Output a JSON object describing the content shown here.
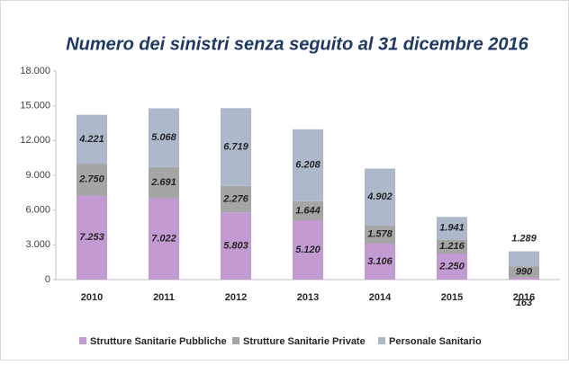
{
  "chart_data": {
    "type": "stacked_bar",
    "title": "Numero dei sinistri senza seguito al 31 dicembre 2016",
    "categories": [
      "2010",
      "2011",
      "2012",
      "2013",
      "2014",
      "2015",
      "2016"
    ],
    "series": [
      {
        "name": "Strutture Sanitarie Pubbliche",
        "color": "#c39bd3",
        "values": [
          7253,
          7022,
          5803,
          5120,
          3106,
          2250,
          163
        ],
        "value_labels": [
          "7.253",
          "7.022",
          "5.803",
          "5.120",
          "3.106",
          "2.250",
          "163"
        ]
      },
      {
        "name": "Strutture Sanitarie Private",
        "color": "#a5a5a5",
        "values": [
          2750,
          2691,
          2276,
          1644,
          1578,
          1216,
          990
        ],
        "value_labels": [
          "2.750",
          "2.691",
          "2.276",
          "1.644",
          "1.578",
          "1.216",
          "990"
        ]
      },
      {
        "name": "Personale Sanitario",
        "color": "#adb9ca",
        "values": [
          4221,
          5068,
          6719,
          6208,
          4902,
          1941,
          1289
        ],
        "value_labels": [
          "4.221",
          "5.068",
          "6.719",
          "6.208",
          "4.902",
          "1.941",
          "1.289"
        ]
      }
    ],
    "ylim": [
      0,
      18000
    ],
    "yticks": [
      0,
      {
        "value": 3000,
        "label": "3.000"
      },
      {
        "value": 6000,
        "label": "6.000"
      },
      {
        "value": 9000,
        "label": "9.000"
      },
      {
        "value": 12000,
        "label": "12.000"
      },
      {
        "value": 15000,
        "label": "15.000"
      },
      {
        "value": 18000,
        "label": "18.000"
      }
    ],
    "legend": "bottom"
  }
}
